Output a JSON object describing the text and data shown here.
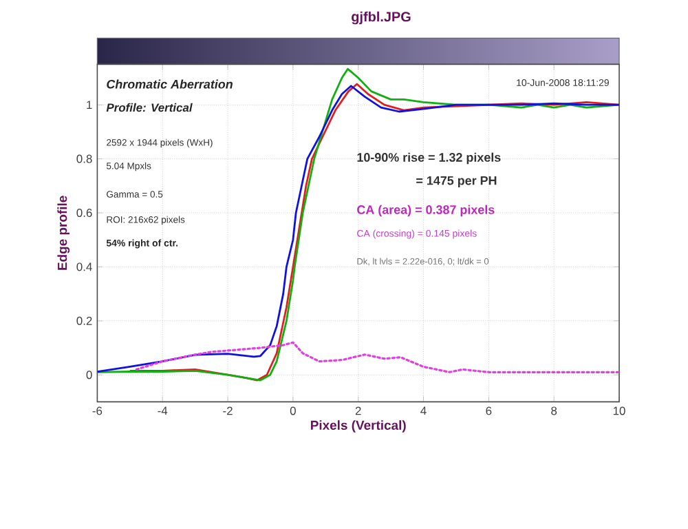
{
  "chart_data": {
    "type": "line",
    "title": "gjfbl.JPG",
    "xlabel": "Pixels (Vertical)",
    "ylabel": "Edge profile",
    "xlim": [
      -6,
      10
    ],
    "xticks": [
      -6,
      -4,
      -2,
      0,
      2,
      4,
      6,
      8,
      10
    ],
    "ylim": [
      -0.1,
      1.15
    ],
    "yticks": [
      0,
      0.2,
      0.4,
      0.6,
      0.8,
      1
    ],
    "grid": true,
    "marker": "none",
    "line_style": "solid",
    "series": [
      {
        "color": "#e02020",
        "x": [
          -5,
          -4,
          -3,
          -2,
          -1.5,
          -1.1,
          -0.8,
          -0.5,
          -0.2,
          0,
          0.2,
          0.4,
          0.58,
          0.9,
          1.3,
          1.7,
          1.96,
          2.3,
          2.8,
          3.4,
          4,
          7,
          8,
          9,
          10
        ],
        "values": [
          0.015,
          0.015,
          0.02,
          0.0,
          -0.01,
          -0.02,
          0.0,
          0.08,
          0.25,
          0.4,
          0.55,
          0.7,
          0.8,
          0.88,
          0.98,
          1.05,
          1.077,
          1.04,
          1.0,
          0.98,
          0.99,
          1.005,
          1.0,
          1.01,
          1.0
        ]
      },
      {
        "color": "#10b010",
        "x": [
          -6,
          -5,
          -4,
          -3,
          -2,
          -1.5,
          -1,
          -0.7,
          -0.5,
          -0.2,
          0,
          0.05,
          0.3,
          0.65,
          0.9,
          1.2,
          1.5,
          1.68,
          2.0,
          2.4,
          3.0,
          3.4,
          4,
          5,
          6,
          7,
          7.5,
          8,
          8.5,
          9,
          10
        ],
        "values": [
          0.01,
          0.012,
          0.012,
          0.015,
          0.0,
          -0.01,
          -0.02,
          0.0,
          0.05,
          0.2,
          0.35,
          0.4,
          0.6,
          0.8,
          0.9,
          1.02,
          1.1,
          1.133,
          1.1,
          1.05,
          1.02,
          1.02,
          1.01,
          1.0,
          1.0,
          0.99,
          1.0,
          0.99,
          1.0,
          0.99,
          1.0
        ]
      },
      {
        "color": "#1010e0",
        "x": [
          -6,
          -5,
          -4,
          -3,
          -2,
          -1.2,
          -1,
          -0.7,
          -0.5,
          -0.3,
          -0.2,
          0,
          0.09,
          0.3,
          0.44,
          0.8,
          1.2,
          1.5,
          1.78,
          2.2,
          2.7,
          3.25,
          4,
          5,
          6,
          7,
          8,
          9,
          10
        ],
        "values": [
          0.012,
          0.03,
          0.05,
          0.074,
          0.078,
          0.067,
          0.07,
          0.11,
          0.18,
          0.3,
          0.4,
          0.5,
          0.6,
          0.72,
          0.8,
          0.88,
          0.98,
          1.04,
          1.07,
          1.03,
          0.99,
          0.975,
          0.985,
          1.0,
          1.0,
          1.0,
          1.005,
          1.0,
          1.0
        ]
      },
      {
        "color": "#e040e0",
        "line_style": "dotted",
        "x": [
          -4.8,
          -4,
          -3,
          -2.5,
          -2,
          -1,
          -0.3,
          0,
          0.3,
          0.8,
          1.5,
          2.2,
          2.8,
          3.3,
          4,
          4.8,
          5.2,
          6,
          7,
          8,
          9,
          10
        ],
        "values": [
          0.02,
          0.05,
          0.075,
          0.085,
          0.09,
          0.1,
          0.11,
          0.12,
          0.08,
          0.05,
          0.055,
          0.075,
          0.06,
          0.065,
          0.03,
          0.01,
          0.02,
          0.01,
          0.01,
          0.01,
          0.01,
          0.01
        ]
      }
    ],
    "annotations": [
      "Chromatic Aberration",
      "Profile: Vertical",
      "10-Jun-2008 18:11:29",
      "2592 x 1944 pixels (WxH)",
      "5.04 Mpxls",
      "Gamma = 0.5",
      "ROI: 216x62 pixels",
      "54% right of ctr.",
      "10-90% rise = 1.32 pixels",
      "= 1475 per PH",
      "CA (area) = 0.387 pixels",
      "CA (crossing) = 0.145 pixels",
      "Dk, lt lvls = 2.22e-016, 0;  lt/dk = 0"
    ]
  }
}
